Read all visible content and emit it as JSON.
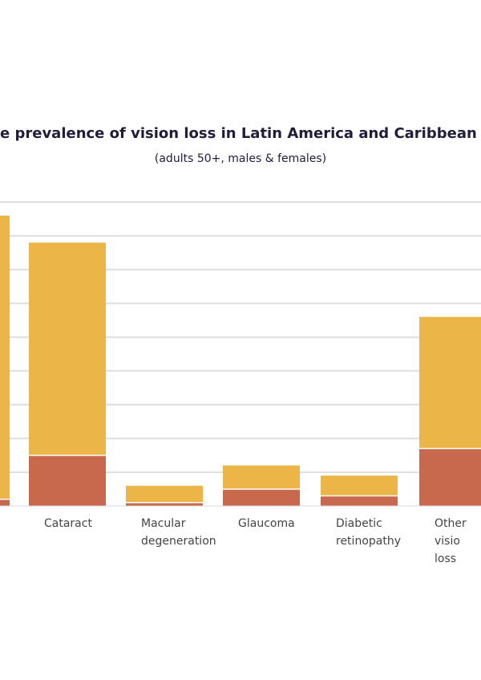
{
  "chart_data": {
    "type": "bar",
    "stacked": true,
    "title": "e prevalence of vision loss in Latin America and Caribbean",
    "subtitle": "(adults 50+, males & females)",
    "categories": [
      "",
      "Cataract",
      "Macular\ndegeneration",
      "Glaucoma",
      "Diabetic\nretinopathy",
      "Other visio\nloss"
    ],
    "ylim": [
      0,
      9
    ],
    "grid": true,
    "legend": "none",
    "series": [
      {
        "color": "#c8684c",
        "values": [
          0.2,
          1.5,
          0.1,
          0.5,
          0.3,
          1.7
        ]
      },
      {
        "color": "#ebb547",
        "values": [
          8.4,
          6.3,
          0.5,
          0.7,
          0.6,
          3.9
        ]
      }
    ]
  }
}
